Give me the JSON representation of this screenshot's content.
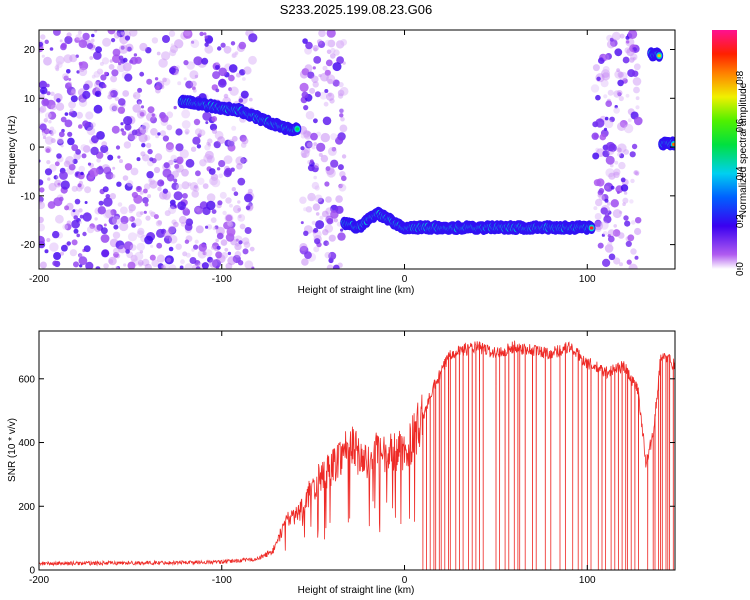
{
  "title": "S233.2025.199.08.23.G06",
  "colors": {
    "snr_line": "#ee2a26",
    "spec_dots": "#7d2cf0",
    "spec_dots_light": "#c9a6f5"
  },
  "chart_data": [
    {
      "type": "heatmap",
      "xlabel": "Height of straight line (km)",
      "ylabel": "Frequency (Hz)",
      "xlim": [
        -200,
        148
      ],
      "ylim": [
        -25,
        24
      ],
      "xticks": [
        "-200",
        "-100",
        "0",
        "100"
      ],
      "yticks": [
        "20",
        "10",
        "0",
        "-10",
        "-20"
      ],
      "colorbar": {
        "label": "Normalized spectral amplitude",
        "range": [
          0,
          1
        ],
        "ticks": [
          "0.0",
          "0.2",
          "0.4",
          "0.6",
          "0.8"
        ],
        "colormap": "rainbow (white-purple-blue-cyan-green-yellow-red-magenta)"
      },
      "noise_regions": [
        [
          -200,
          -83
        ],
        [
          -56,
          -33
        ],
        [
          104,
          128
        ]
      ],
      "signal_tracks": [
        {
          "x": [
            -122,
            -100,
            -90,
            -80,
            -70,
            -62,
            -58
          ],
          "y": [
            9.5,
            8,
            7.5,
            6,
            4.5,
            3.5,
            4
          ],
          "amplitude": 0.75
        },
        {
          "x": [
            -33,
            -25,
            -20,
            -15,
            -8,
            0,
            20,
            40,
            60,
            80,
            103
          ],
          "y": [
            -15.5,
            -16.5,
            -15,
            -13.5,
            -15,
            -16.5,
            -16.5,
            -16.5,
            -16.5,
            -16.5,
            -16.5
          ],
          "amplitude": 0.95
        },
        {
          "x": [
            135,
            140
          ],
          "y": [
            19,
            19
          ],
          "amplitude": 0.9
        },
        {
          "x": [
            141,
            148
          ],
          "y": [
            0.8,
            0.8
          ],
          "amplitude": 0.9
        }
      ]
    },
    {
      "type": "line",
      "xlabel": "Height of straight line (km)",
      "ylabel": "SNR (10 * v/v)",
      "xlim": [
        -200,
        148
      ],
      "ylim": [
        0,
        750
      ],
      "xticks": [
        "-200",
        "-100",
        "0",
        "100"
      ],
      "yticks": [
        "0",
        "200",
        "400",
        "600"
      ],
      "series": [
        {
          "envelope_x": [
            -200,
            -150,
            -100,
            -80,
            -72,
            -65,
            -58,
            -52,
            -45,
            -40,
            -35,
            -30,
            -25,
            -20,
            -15,
            -10,
            -5,
            0,
            5,
            10,
            15,
            20,
            25,
            30,
            35,
            40,
            50,
            60,
            70,
            80,
            90,
            100,
            110,
            120,
            128,
            132,
            136,
            140,
            144,
            148
          ],
          "envelope_y": [
            20,
            22,
            25,
            35,
            60,
            150,
            180,
            240,
            300,
            320,
            360,
            400,
            360,
            330,
            370,
            350,
            380,
            360,
            420,
            480,
            560,
            620,
            680,
            690,
            695,
            700,
            680,
            700,
            690,
            680,
            700,
            650,
            620,
            640,
            560,
            340,
            420,
            660,
            670,
            640
          ],
          "dropouts_x": [
            10,
            12,
            14,
            16,
            17,
            19,
            20,
            22,
            24,
            25,
            28,
            30,
            32,
            35,
            37,
            39,
            41,
            43,
            50,
            52,
            55,
            57,
            60,
            62,
            63,
            66,
            70,
            72,
            77,
            80,
            85,
            88,
            92,
            95,
            97,
            100,
            102,
            106,
            108,
            110,
            113,
            115,
            117,
            119,
            121,
            122,
            124,
            126,
            128,
            133,
            136,
            137,
            139,
            140,
            141,
            143,
            144,
            145,
            147
          ]
        }
      ]
    }
  ]
}
